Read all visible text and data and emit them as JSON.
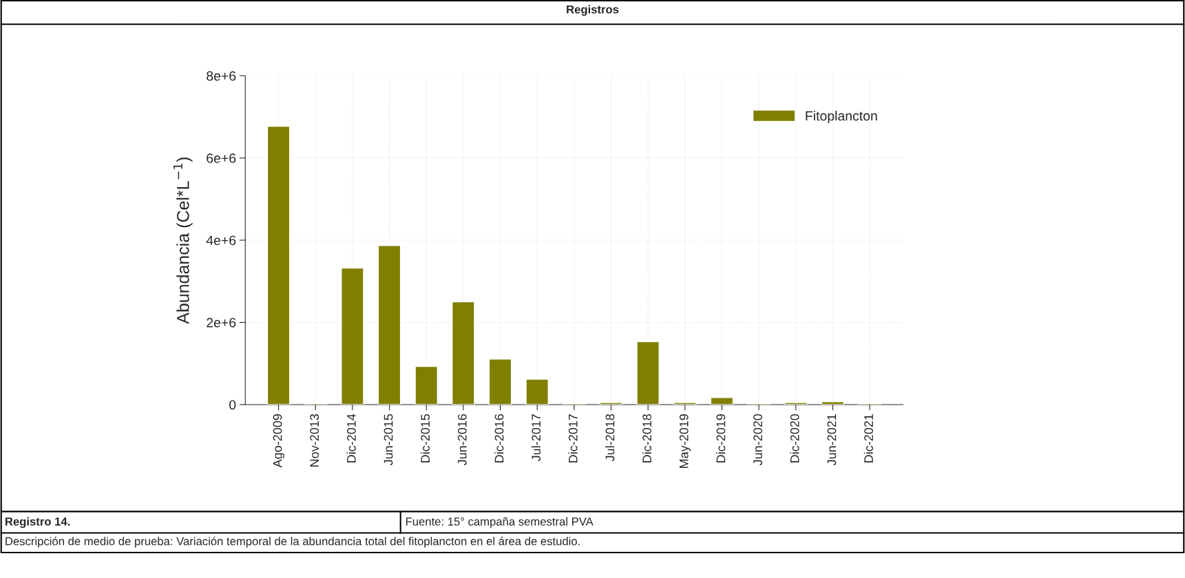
{
  "chart_data": {
    "type": "bar",
    "title": "Registros",
    "ylabel": "Abundancia (Cel*L$^{−1}$)",
    "categories": [
      "Ago-2009",
      "Nov-2013",
      "Dic-2014",
      "Jun-2015",
      "Dic-2015",
      "Jun-2016",
      "Dic-2016",
      "Jul-2017",
      "Dic-2017",
      "Jul-2018",
      "Dic-2018",
      "May-2019",
      "Dic-2019",
      "Jun-2020",
      "Dic-2020",
      "Jun-2021",
      "Dic-2021"
    ],
    "series": [
      {
        "name": "Fitoplancton",
        "color": "#7f7f00",
        "values": [
          6770000,
          30000,
          3320000,
          3870000,
          930000,
          2500000,
          1110000,
          620000,
          30000,
          50000,
          1530000,
          50000,
          170000,
          30000,
          50000,
          70000,
          30000
        ]
      }
    ],
    "ylim": [
      0,
      8000000
    ],
    "yticks": [
      0,
      {
        "value": 2000000,
        "label": "2e+6"
      },
      {
        "value": 4000000,
        "label": "4e+6"
      },
      {
        "value": 6000000,
        "label": "6e+6"
      },
      {
        "value": 8000000,
        "label": "8e+6"
      }
    ],
    "grid": true,
    "legend": "top right",
    "annotations": [
      "Registro 14.",
      "Fuente: 15° campaña semestral PVA",
      "Descripción de medio de prueba: Variación temporal de la abundancia total del fitoplancton en el área de estudio."
    ]
  }
}
